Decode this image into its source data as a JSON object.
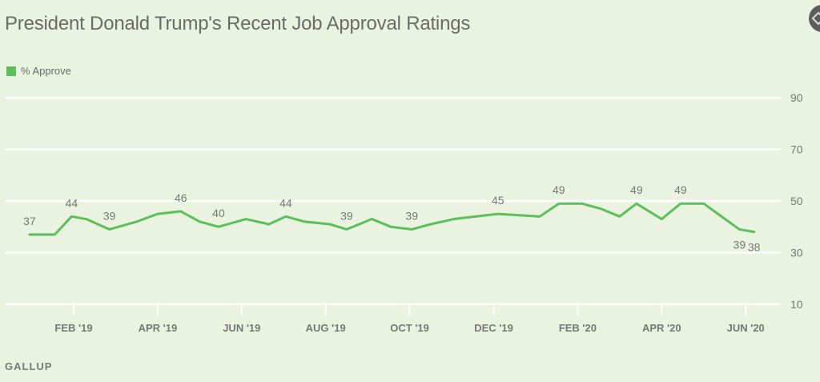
{
  "header": {
    "title": "President Donald Trump's Recent Job Approval Ratings"
  },
  "legend": {
    "label": "% Approve",
    "color": "#5bbf5b"
  },
  "footer": {
    "source": "GALLUP"
  },
  "colors": {
    "background": "#eaf3df",
    "line": "#5bbf5b",
    "gridline": "#ffffff",
    "text": "#777777"
  },
  "chart_data": {
    "type": "line",
    "title": "President Donald Trump's Recent Job Approval Ratings",
    "xlabel": "",
    "ylabel": "",
    "ylim": [
      10,
      90
    ],
    "yticks": [
      90,
      70,
      50,
      30,
      10
    ],
    "y_axis_position": "right",
    "grid": true,
    "legend_position": "top-left",
    "xticks": [
      {
        "label": "FEB '19",
        "month": 2
      },
      {
        "label": "APR '19",
        "month": 4
      },
      {
        "label": "JUN '19",
        "month": 6
      },
      {
        "label": "AUG '19",
        "month": 8
      },
      {
        "label": "OCT '19",
        "month": 10
      },
      {
        "label": "DEC '19",
        "month": 12
      },
      {
        "label": "FEB '20",
        "month": 14
      },
      {
        "label": "APR '20",
        "month": 16
      },
      {
        "label": "JUN '20",
        "month": 18
      }
    ],
    "series": [
      {
        "name": "% Approve",
        "color": "#5bbf5b",
        "points": [
          {
            "month": 0.95,
            "value": 37,
            "label": "37"
          },
          {
            "month": 1.55,
            "value": 37
          },
          {
            "month": 1.95,
            "value": 44,
            "label": "44"
          },
          {
            "month": 2.3,
            "value": 43
          },
          {
            "month": 2.85,
            "value": 39,
            "label": "39"
          },
          {
            "month": 3.5,
            "value": 42
          },
          {
            "month": 4.0,
            "value": 45
          },
          {
            "month": 4.55,
            "value": 46,
            "label": "46"
          },
          {
            "month": 5.0,
            "value": 42
          },
          {
            "month": 5.45,
            "value": 40,
            "label": "40"
          },
          {
            "month": 6.1,
            "value": 43
          },
          {
            "month": 6.65,
            "value": 41
          },
          {
            "month": 7.05,
            "value": 44,
            "label": "44"
          },
          {
            "month": 7.5,
            "value": 42
          },
          {
            "month": 8.1,
            "value": 41
          },
          {
            "month": 8.5,
            "value": 39,
            "label": "39"
          },
          {
            "month": 9.1,
            "value": 43
          },
          {
            "month": 9.55,
            "value": 40
          },
          {
            "month": 10.05,
            "value": 39,
            "label": "39"
          },
          {
            "month": 10.5,
            "value": 41
          },
          {
            "month": 11.05,
            "value": 43
          },
          {
            "month": 12.1,
            "value": 45,
            "label": "45"
          },
          {
            "month": 13.1,
            "value": 44
          },
          {
            "month": 13.55,
            "value": 49,
            "label": "49"
          },
          {
            "month": 14.1,
            "value": 49
          },
          {
            "month": 14.55,
            "value": 47
          },
          {
            "month": 15.0,
            "value": 44
          },
          {
            "month": 15.4,
            "value": 49,
            "label": "49"
          },
          {
            "month": 16.0,
            "value": 43
          },
          {
            "month": 16.45,
            "value": 49,
            "label": "49"
          },
          {
            "month": 17.0,
            "value": 49
          },
          {
            "month": 17.85,
            "value": 39,
            "label": "39"
          },
          {
            "month": 18.2,
            "value": 38,
            "label": "38"
          }
        ]
      }
    ]
  }
}
